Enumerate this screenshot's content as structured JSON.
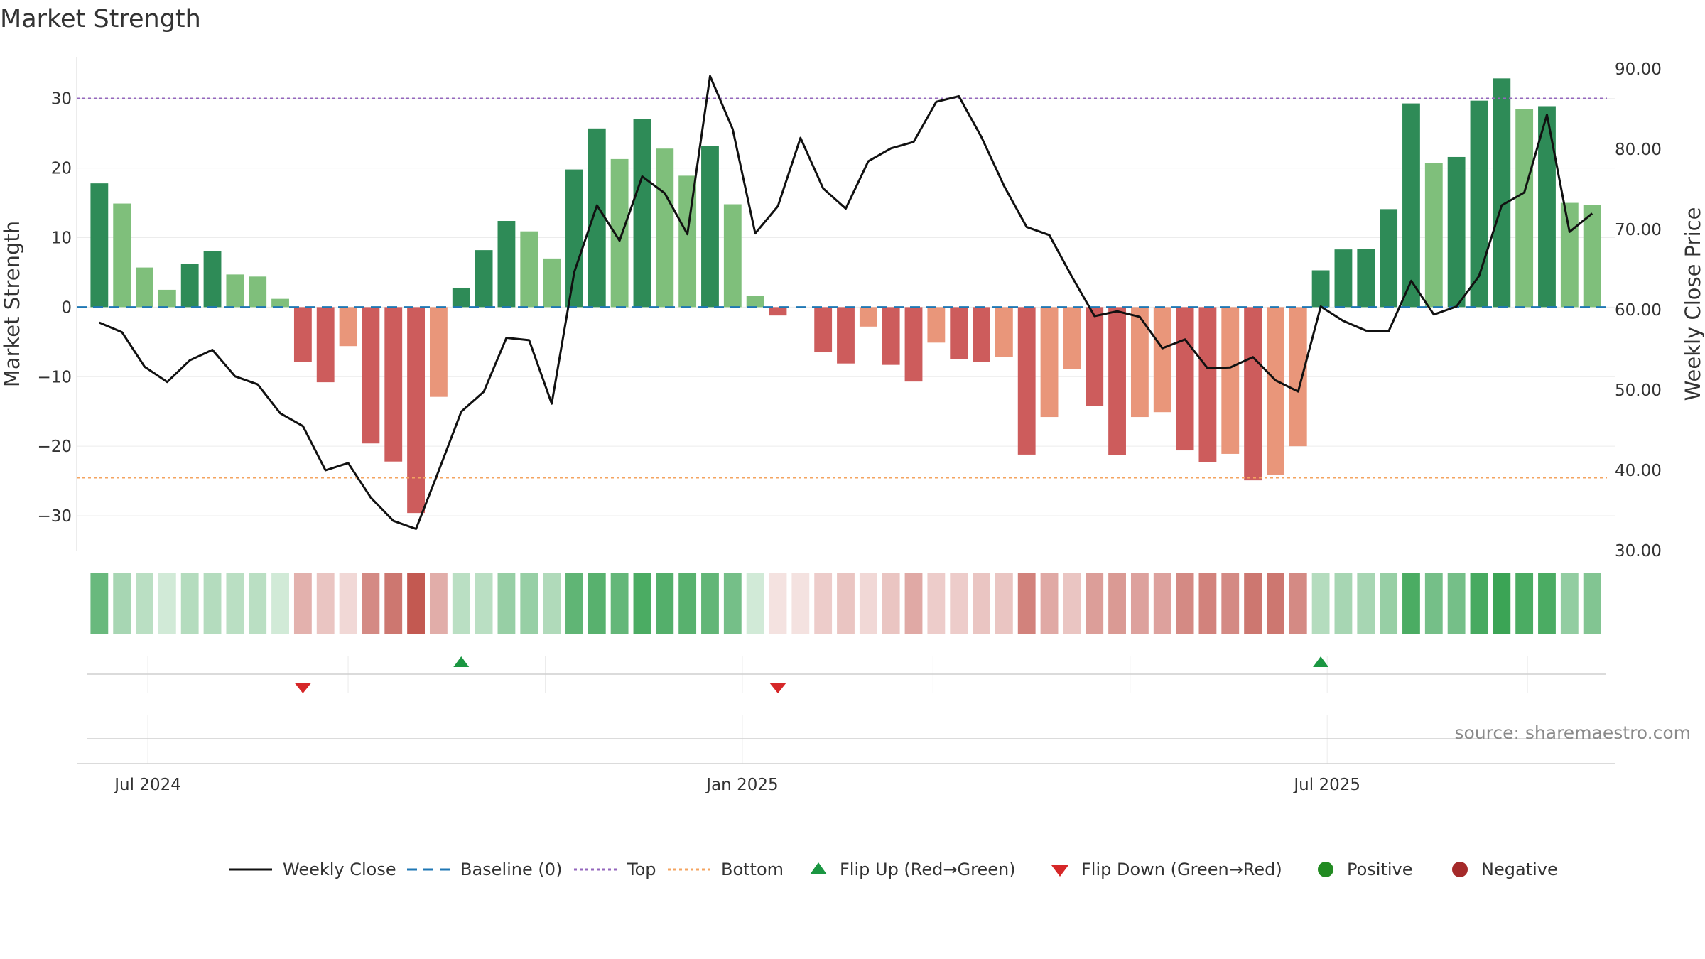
{
  "chart_data": {
    "type": "bar",
    "title": "Market Strength",
    "ylabel": "Market Strength",
    "y2label": "Weekly Close Price",
    "ylim": [
      -35,
      36
    ],
    "y2lim": [
      30,
      91.5
    ],
    "yticks": [
      30,
      20,
      10,
      0,
      -10,
      -20,
      -30
    ],
    "y2ticks": [
      "90.00",
      "80.00",
      "70.00",
      "60.00",
      "50.00",
      "40.00",
      "30.00"
    ],
    "y2tick_values": [
      90,
      80,
      70,
      60,
      50,
      40,
      30
    ],
    "x_start": "2024-06-09",
    "x_end": "2025-09-28",
    "x_ticks": [
      {
        "label": "Jul 2024",
        "date": "2024-07-01"
      },
      {
        "label": "Jan 2025",
        "date": "2025-01-01"
      },
      {
        "label": "Jul 2025",
        "date": "2025-07-01"
      }
    ],
    "minor_grid_dates": [
      "2024-07-01",
      "2024-09-01",
      "2024-11-01",
      "2025-01-01",
      "2025-03-01",
      "2025-05-01",
      "2025-07-01",
      "2025-09-01"
    ],
    "weeks": [
      "2024-06-16",
      "2024-06-23",
      "2024-06-30",
      "2024-07-07",
      "2024-07-14",
      "2024-07-21",
      "2024-07-28",
      "2024-08-04",
      "2024-08-11",
      "2024-08-18",
      "2024-08-25",
      "2024-09-01",
      "2024-09-08",
      "2024-09-15",
      "2024-09-22",
      "2024-09-29",
      "2024-10-06",
      "2024-10-13",
      "2024-10-20",
      "2024-10-27",
      "2024-11-03",
      "2024-11-10",
      "2024-11-17",
      "2024-11-24",
      "2024-12-01",
      "2024-12-08",
      "2024-12-15",
      "2024-12-22",
      "2024-12-29",
      "2025-01-05",
      "2025-01-12",
      "2025-01-19",
      "2025-01-26",
      "2025-02-02",
      "2025-02-09",
      "2025-02-16",
      "2025-02-23",
      "2025-03-02",
      "2025-03-09",
      "2025-03-16",
      "2025-03-23",
      "2025-03-30",
      "2025-04-06",
      "2025-04-13",
      "2025-04-20",
      "2025-04-27",
      "2025-05-04",
      "2025-05-11",
      "2025-05-18",
      "2025-05-25",
      "2025-06-01",
      "2025-06-08",
      "2025-06-15",
      "2025-06-22",
      "2025-06-29",
      "2025-07-06",
      "2025-07-13",
      "2025-07-20",
      "2025-07-27",
      "2025-08-03",
      "2025-08-10",
      "2025-08-17",
      "2025-08-24",
      "2025-08-31",
      "2025-09-07",
      "2025-09-14",
      "2025-09-21"
    ],
    "strength": [
      17.8,
      14.9,
      5.7,
      2.5,
      6.2,
      8.1,
      4.7,
      4.4,
      1.2,
      -7.9,
      -10.8,
      -5.6,
      -19.6,
      -22.2,
      -29.6,
      -12.9,
      2.8,
      8.2,
      12.4,
      10.9,
      7.0,
      19.8,
      25.7,
      21.3,
      27.1,
      22.8,
      18.9,
      23.2,
      14.8,
      1.6,
      -1.2,
      0,
      -6.5,
      -8.1,
      -2.8,
      -8.3,
      -10.7,
      -5.1,
      -7.5,
      -7.9,
      -7.2,
      -21.2,
      -15.8,
      -8.9,
      -14.2,
      -21.3,
      -15.8,
      -15.1,
      -20.6,
      -22.3,
      -21.1,
      -24.9,
      -24.1,
      -20.0,
      5.3,
      8.3,
      8.4,
      14.1,
      29.3,
      20.7,
      21.6,
      29.7,
      32.9,
      28.5,
      28.9,
      15.0,
      14.7
    ],
    "bar_tone": [
      "dark",
      "light",
      "light",
      "light",
      "dark",
      "dark",
      "light",
      "light",
      "light",
      "dark",
      "dark",
      "light",
      "dark",
      "dark",
      "dark",
      "light",
      "dark",
      "dark",
      "dark",
      "light",
      "light",
      "dark",
      "dark",
      "light",
      "dark",
      "light",
      "light",
      "dark",
      "light",
      "light",
      "dark",
      "dark",
      "dark",
      "dark",
      "light",
      "dark",
      "dark",
      "light",
      "dark",
      "dark",
      "light",
      "dark",
      "light",
      "light",
      "dark",
      "dark",
      "light",
      "light",
      "dark",
      "dark",
      "light",
      "dark",
      "light",
      "light",
      "dark",
      "dark",
      "dark",
      "dark",
      "dark",
      "light",
      "dark",
      "dark",
      "dark",
      "light",
      "dark",
      "light",
      "light"
    ],
    "heat_intensity": [
      0.72,
      0.42,
      0.33,
      0.22,
      0.36,
      0.36,
      0.33,
      0.33,
      0.22,
      0.4,
      0.3,
      0.2,
      0.6,
      0.7,
      0.85,
      0.42,
      0.33,
      0.33,
      0.5,
      0.5,
      0.38,
      0.76,
      0.8,
      0.74,
      0.86,
      0.82,
      0.8,
      0.75,
      0.66,
      0.22,
      0.15,
      0.15,
      0.26,
      0.3,
      0.2,
      0.3,
      0.44,
      0.26,
      0.26,
      0.3,
      0.3,
      0.64,
      0.44,
      0.3,
      0.5,
      0.52,
      0.48,
      0.48,
      0.6,
      0.64,
      0.6,
      0.7,
      0.7,
      0.6,
      0.36,
      0.42,
      0.42,
      0.5,
      0.86,
      0.66,
      0.66,
      0.88,
      0.94,
      0.86,
      0.86,
      0.52,
      0.6
    ],
    "weekly_close": [
      58.4,
      57.2,
      52.9,
      51.0,
      53.7,
      55.0,
      51.7,
      50.7,
      47.1,
      45.5,
      40.0,
      40.9,
      36.6,
      33.7,
      32.7,
      39.9,
      47.3,
      49.8,
      56.5,
      56.2,
      48.3,
      64.7,
      73.0,
      68.6,
      76.6,
      74.5,
      69.4,
      89.1,
      82.5,
      69.5,
      72.9,
      81.4,
      75.1,
      72.6,
      78.5,
      80.1,
      80.9,
      85.9,
      86.6,
      81.5,
      75.4,
      70.3,
      69.3,
      64.1,
      59.2,
      59.8,
      59.1,
      55.2,
      56.3,
      52.7,
      52.8,
      54.1,
      51.2,
      49.8,
      60.4,
      58.6,
      57.4,
      57.3,
      63.6,
      59.4,
      60.4,
      64.2,
      73.0,
      74.6,
      84.3,
      69.7,
      72.0
    ],
    "top_line": 30,
    "bottom_line": -24.5,
    "flip_up_weeks": [
      "2024-10-06",
      "2025-06-29"
    ],
    "flip_down_weeks": [
      "2024-08-18",
      "2025-01-12"
    ],
    "legend": [
      "Weekly Close",
      "Baseline (0)",
      "Top",
      "Bottom",
      "Flip Up (Red→Green)",
      "Flip Down (Green→Red)",
      "Positive",
      "Negative"
    ],
    "legend_placement": "bottom-center",
    "grid": true
  },
  "source": "source: sharemaestro.com",
  "colors": {
    "pos_dark": "#2e8b57",
    "pos_light": "#7fbf7b",
    "neg_dark": "#cd5c5c",
    "neg_light": "#e9967a",
    "heat_green": "#2e9e4a",
    "heat_red": "#b83c32",
    "price_line": "#111111",
    "baseline": "#1f77b4",
    "top": "#9467bd",
    "bottom": "#f4a460",
    "flip_up": "#1a9641",
    "flip_down": "#d62728",
    "positive_dot": "#228b22",
    "negative_dot": "#a52a2a"
  }
}
